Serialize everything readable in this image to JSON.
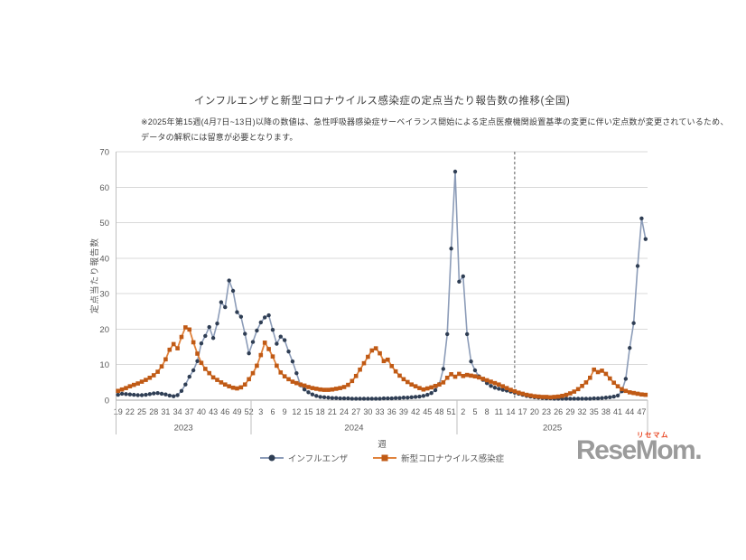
{
  "header": {
    "title": "インフルエンザと新型コロナウイルス感染症の定点当たり報告数の推移(全国)",
    "note_line1": "※2025年第15週(4月7日~13日)以降の数値は、急性呼吸器感染症サーベイランス開始による定点医療機関設置基準の変更に伴い定点数が変更されているため、",
    "note_line2": "データの解釈には留意が必要となります。"
  },
  "chart_data": {
    "type": "line",
    "title": "インフルエンザと新型コロナウイルス感染症の定点当たり報告数の推移(全国)",
    "xlabel": "週",
    "ylabel": "定点当たり報告数",
    "ylim": [
      0,
      70
    ],
    "y_ticks": [
      0,
      10,
      20,
      30,
      40,
      50,
      60,
      70
    ],
    "grid": true,
    "legend_position": "bottom",
    "colors": {
      "gridline": "#d9d9d9",
      "axis_line": "#a6a6a6",
      "separator": "#bfbfbf",
      "tick_text": "#595959",
      "annotation_line": "#595959"
    },
    "x_groups": [
      {
        "year": "2023",
        "start_week": 19,
        "end_week": 52,
        "tick_weeks": [
          19,
          22,
          25,
          28,
          31,
          34,
          37,
          40,
          43,
          46,
          49,
          52
        ]
      },
      {
        "year": "2024",
        "start_week": 1,
        "end_week": 52,
        "tick_weeks": [
          3,
          6,
          9,
          12,
          15,
          18,
          21,
          24,
          27,
          30,
          33,
          36,
          39,
          42,
          45,
          48,
          51
        ]
      },
      {
        "year": "2025",
        "start_week": 1,
        "end_week": 48,
        "tick_weeks": [
          2,
          5,
          8,
          11,
          14,
          17,
          20,
          23,
          26,
          29,
          32,
          35,
          38,
          41,
          44,
          47
        ]
      }
    ],
    "annotation": {
      "type": "vline",
      "year": "2025",
      "week": 15,
      "style": "dashed"
    },
    "series": [
      {
        "name": "インフルエンザ",
        "marker": "circle",
        "line_color": "#8c9cb8",
        "marker_color": "#2f3e54",
        "line_width": 1.6,
        "marker_size": 4.4,
        "values": {
          "2023": [
            1.5,
            1.8,
            1.7,
            1.6,
            1.5,
            1.4,
            1.4,
            1.5,
            1.7,
            1.9,
            2.0,
            1.8,
            1.6,
            1.3,
            1.1,
            1.4,
            2.6,
            4.4,
            6.6,
            8.4,
            11.0,
            16.0,
            18.1,
            20.6,
            17.5,
            21.6,
            27.6,
            26.2,
            33.7,
            30.8,
            24.8,
            23.5,
            18.7,
            13.2
          ],
          "2024": [
            16.4,
            19.6,
            21.9,
            23.3,
            23.9,
            19.8,
            15.9,
            17.9,
            16.9,
            13.7,
            10.9,
            7.6,
            4.2,
            3.0,
            2.2,
            1.6,
            1.2,
            0.9,
            0.8,
            0.7,
            0.6,
            0.6,
            0.5,
            0.5,
            0.5,
            0.4,
            0.4,
            0.4,
            0.4,
            0.4,
            0.4,
            0.4,
            0.4,
            0.5,
            0.5,
            0.5,
            0.6,
            0.6,
            0.7,
            0.7,
            0.8,
            0.9,
            1.0,
            1.2,
            1.5,
            2.0,
            2.8,
            4.5,
            8.8,
            18.6,
            42.7,
            64.4
          ],
          "2025": [
            33.4,
            34.9,
            18.6,
            10.9,
            8.4,
            6.7,
            5.7,
            4.8,
            4.0,
            3.5,
            3.2,
            2.9,
            2.7,
            2.4,
            2.1,
            1.8,
            1.5,
            1.2,
            1.0,
            0.8,
            0.7,
            0.6,
            0.5,
            0.5,
            0.4,
            0.4,
            0.4,
            0.4,
            0.4,
            0.4,
            0.4,
            0.4,
            0.4,
            0.4,
            0.5,
            0.5,
            0.6,
            0.7,
            0.8,
            1.0,
            1.3,
            2.5,
            6.0,
            14.7,
            21.7,
            37.8,
            51.2,
            45.4
          ]
        }
      },
      {
        "name": "新型コロナウイルス感染症",
        "marker": "square",
        "line_color": "#e0823c",
        "marker_color": "#c05a15",
        "line_width": 1.8,
        "marker_size": 4.6,
        "values": {
          "2023": [
            2.6,
            3.0,
            3.4,
            3.9,
            4.3,
            4.7,
            5.2,
            5.7,
            6.3,
            7.0,
            8.0,
            9.5,
            11.5,
            14.2,
            15.8,
            14.6,
            17.8,
            20.5,
            19.9,
            16.3,
            13.1,
            10.5,
            8.8,
            7.6,
            6.4,
            5.7,
            5.0,
            4.4,
            3.9,
            3.5,
            3.3,
            3.6,
            4.4,
            5.9
          ],
          "2024": [
            7.6,
            9.7,
            12.7,
            16.2,
            14.4,
            12.3,
            9.7,
            7.8,
            6.7,
            5.9,
            5.2,
            4.8,
            4.4,
            4.1,
            3.7,
            3.4,
            3.2,
            3.0,
            2.9,
            2.9,
            3.0,
            3.2,
            3.4,
            3.7,
            4.3,
            5.4,
            6.8,
            8.6,
            10.4,
            12.2,
            14.0,
            14.6,
            13.2,
            11.0,
            11.4,
            9.6,
            8.1,
            6.9,
            5.9,
            5.1,
            4.4,
            3.9,
            3.4,
            3.0,
            3.3,
            3.6,
            4.0,
            4.4,
            5.0,
            6.3,
            7.3,
            6.6
          ],
          "2025": [
            7.4,
            6.8,
            7.1,
            6.9,
            6.7,
            6.4,
            6.0,
            5.6,
            5.2,
            4.8,
            4.4,
            3.9,
            3.4,
            2.9,
            2.5,
            2.1,
            1.8,
            1.5,
            1.3,
            1.1,
            1.0,
            0.9,
            0.9,
            0.8,
            0.9,
            1.0,
            1.2,
            1.5,
            1.9,
            2.4,
            3.1,
            4.0,
            5.0,
            6.3,
            8.6,
            7.9,
            8.3,
            7.4,
            6.1,
            4.9,
            3.9,
            3.1,
            2.6,
            2.2,
            2.0,
            1.8,
            1.6,
            1.5
          ]
        }
      }
    ]
  },
  "logo": {
    "text": "ReseMom.",
    "ruby": "リセマム",
    "color": "#9b9b9b",
    "ruby_color": "#e8431f"
  }
}
